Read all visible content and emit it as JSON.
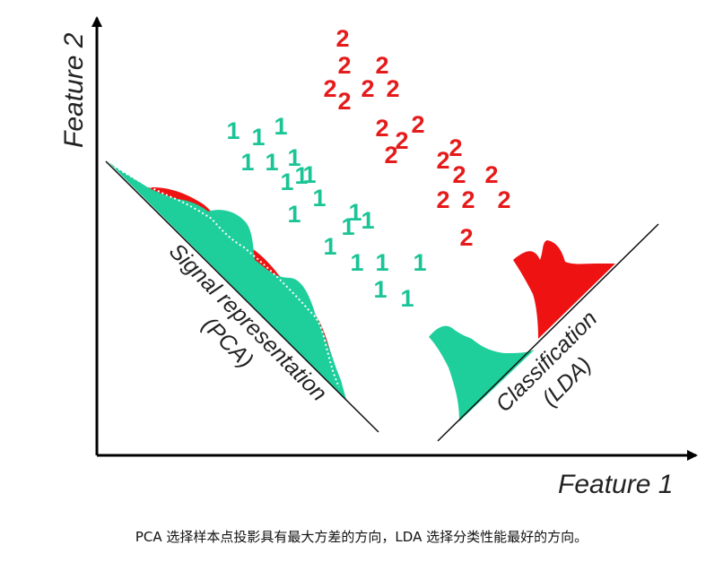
{
  "axes": {
    "x_label": "Feature 1",
    "y_label": "Feature 2"
  },
  "projections": {
    "pca": {
      "line1": "Signal representation",
      "line2": "(PCA)"
    },
    "lda": {
      "line1": "Classification",
      "line2": "(LDA)"
    }
  },
  "classes": [
    {
      "label": "1",
      "color": "#1bc496"
    },
    {
      "label": "2",
      "color": "#e51b1b"
    }
  ],
  "colors": {
    "class1_fill": "#1ecf9c",
    "class2_fill": "#ee1212",
    "line": "#111111",
    "axis": "#000000"
  },
  "caption": "PCA 选择样本点投影具有最大方差的方向，LDA 选择分类性能最好的方向。"
}
